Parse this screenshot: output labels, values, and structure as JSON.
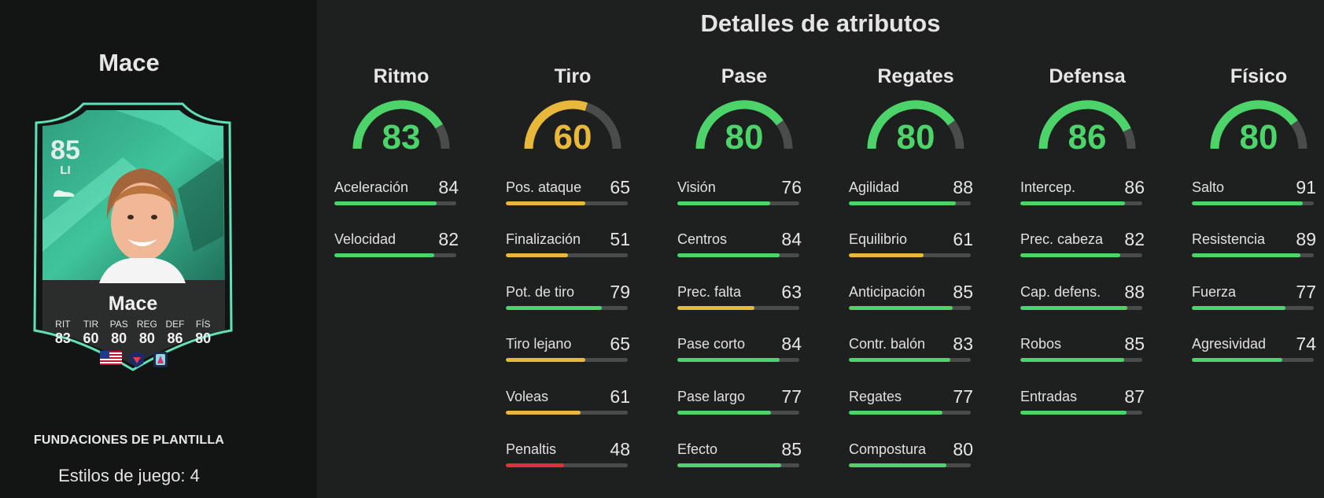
{
  "player": {
    "name": "Mace",
    "card_name": "Mace",
    "rating": "85",
    "position": "LI",
    "card_stats": [
      {
        "label": "RIT",
        "value": "83"
      },
      {
        "label": "TIR",
        "value": "60"
      },
      {
        "label": "PAS",
        "value": "80"
      },
      {
        "label": "REG",
        "value": "80"
      },
      {
        "label": "DEF",
        "value": "86"
      },
      {
        "label": "FÍS",
        "value": "80"
      }
    ],
    "squad_label": "FUNDACIONES DE PLANTILLA",
    "playstyles_label": "Estilos de juego: 4"
  },
  "section_title": "Detalles de atributos",
  "colors": {
    "green": "#4cd46a",
    "yellow": "#e8b83a",
    "red": "#e0303a",
    "track": "#4a4c4b"
  },
  "categories": [
    {
      "name": "Ritmo",
      "value": "83",
      "attrs": [
        {
          "name": "Aceleración",
          "value": "84"
        },
        {
          "name": "Velocidad",
          "value": "82"
        }
      ]
    },
    {
      "name": "Tiro",
      "value": "60",
      "attrs": [
        {
          "name": "Pos. ataque",
          "value": "65"
        },
        {
          "name": "Finalización",
          "value": "51"
        },
        {
          "name": "Pot. de tiro",
          "value": "79"
        },
        {
          "name": "Tiro lejano",
          "value": "65"
        },
        {
          "name": "Voleas",
          "value": "61"
        },
        {
          "name": "Penaltis",
          "value": "48"
        }
      ]
    },
    {
      "name": "Pase",
      "value": "80",
      "attrs": [
        {
          "name": "Visión",
          "value": "76"
        },
        {
          "name": "Centros",
          "value": "84"
        },
        {
          "name": "Prec. falta",
          "value": "63"
        },
        {
          "name": "Pase corto",
          "value": "84"
        },
        {
          "name": "Pase largo",
          "value": "77"
        },
        {
          "name": "Efecto",
          "value": "85"
        }
      ]
    },
    {
      "name": "Regates",
      "value": "80",
      "attrs": [
        {
          "name": "Agilidad",
          "value": "88"
        },
        {
          "name": "Equilibrio",
          "value": "61"
        },
        {
          "name": "Anticipación",
          "value": "85"
        },
        {
          "name": "Contr. balón",
          "value": "83"
        },
        {
          "name": "Regates",
          "value": "77"
        },
        {
          "name": "Compostura",
          "value": "80"
        }
      ]
    },
    {
      "name": "Defensa",
      "value": "86",
      "attrs": [
        {
          "name": "Intercep.",
          "value": "86"
        },
        {
          "name": "Prec. cabeza",
          "value": "82"
        },
        {
          "name": "Cap. defens.",
          "value": "88"
        },
        {
          "name": "Robos",
          "value": "85"
        },
        {
          "name": "Entradas",
          "value": "87"
        }
      ]
    },
    {
      "name": "Físico",
      "value": "80",
      "attrs": [
        {
          "name": "Salto",
          "value": "91"
        },
        {
          "name": "Resistencia",
          "value": "89"
        },
        {
          "name": "Fuerza",
          "value": "77"
        },
        {
          "name": "Agresividad",
          "value": "74"
        }
      ]
    }
  ]
}
